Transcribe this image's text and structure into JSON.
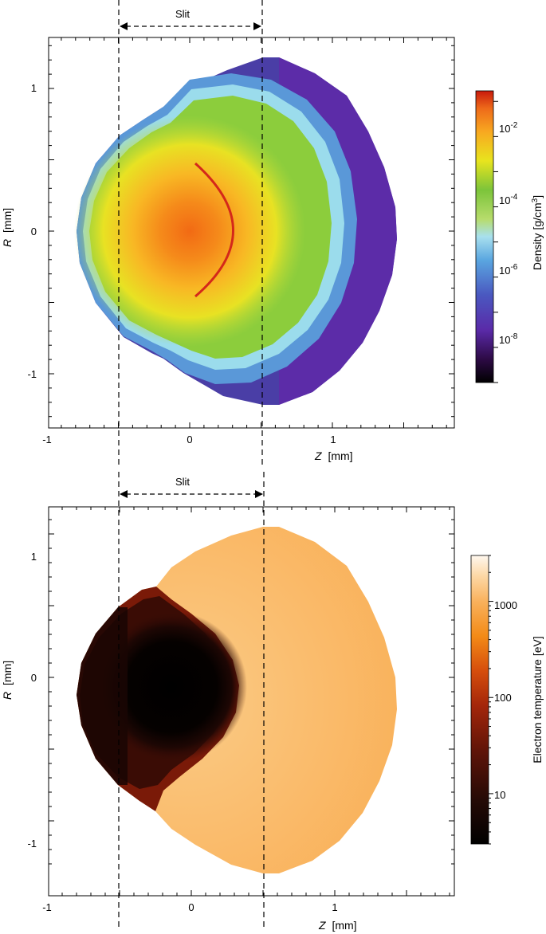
{
  "chart_data": [
    {
      "type": "heatmap",
      "panel": "top",
      "title": "",
      "xlabel": {
        "var": "Z",
        "unit": "[mm]"
      },
      "ylabel": {
        "var": "R",
        "unit": "[mm]"
      },
      "xlim": [
        -1.0,
        1.85
      ],
      "ylim": [
        -1.37,
        1.37
      ],
      "xticks": [
        -1,
        0,
        1
      ],
      "yticks": [
        1,
        0,
        -1
      ],
      "slit": {
        "label": "Slit",
        "z_range": [
          -0.5,
          0.5
        ]
      },
      "colorbar": {
        "label": "Density [g/cm3]",
        "label_main": "Density [g/cm",
        "label_sup": "3",
        "label_end": "]",
        "scale": "log",
        "range": [
          1e-09,
          0.2
        ],
        "ticks": [
          {
            "base": "10",
            "exp": "-2",
            "value": 0.01
          },
          {
            "base": "10",
            "exp": "-4",
            "value": 0.0001
          },
          {
            "base": "10",
            "exp": "-6",
            "value": 1e-06
          },
          {
            "base": "10",
            "exp": "-8",
            "value": 1e-08
          }
        ],
        "colormap": [
          "#000000",
          "#3a0a60",
          "#5a2aa8",
          "#4e5cc2",
          "#5aa6e0",
          "#a9e0f0",
          "#b5dc6a",
          "#7cc43a",
          "#e8e41e",
          "#f8b020",
          "#ee6a1a",
          "#d01e0e"
        ]
      },
      "features": {
        "core_density_max": "~10^-1.5 g/cm3 at Z=0, R=0",
        "shock_front_arc_z": 0.3,
        "outer_plasma_density": "~10^-8 g/cm3"
      }
    },
    {
      "type": "heatmap",
      "panel": "bottom",
      "title": "",
      "xlabel": {
        "var": "Z",
        "unit": "[mm]"
      },
      "ylabel": {
        "var": "R",
        "unit": "[mm]"
      },
      "xlim": [
        -1.0,
        1.85
      ],
      "ylim": [
        -1.37,
        1.37
      ],
      "xticks": [
        -1,
        0,
        1
      ],
      "yticks": [
        1,
        0,
        -1
      ],
      "slit": {
        "label": "Slit",
        "z_range": [
          -0.5,
          0.5
        ]
      },
      "colorbar": {
        "label": "Electron temperature [eV]",
        "scale": "log",
        "range": [
          3,
          3000
        ],
        "ticks": [
          {
            "label": "1000",
            "value": 1000
          },
          {
            "label": "100",
            "value": 100
          },
          {
            "label": "10",
            "value": 10
          }
        ],
        "colormap": [
          "#000000",
          "#2a0b06",
          "#5e1408",
          "#9a2206",
          "#d24a0a",
          "#f2860a",
          "#faae4a",
          "#fdd59e",
          "#fff8f0"
        ]
      },
      "features": {
        "cold_core_temperature": "~5 eV",
        "hot_corona_temperature": "~1000-1500 eV"
      }
    }
  ]
}
